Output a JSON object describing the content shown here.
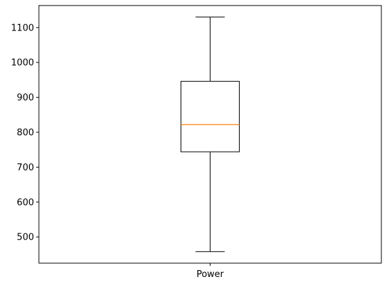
{
  "chart_data": {
    "type": "box",
    "categories": [
      "Power"
    ],
    "boxes": [
      {
        "name": "Power",
        "whisker_low": 458,
        "q1": 744,
        "median": 822,
        "q3": 946,
        "whisker_high": 1130,
        "outliers": []
      }
    ],
    "title": "",
    "xlabel": "",
    "ylabel": "",
    "ylim": [
      425,
      1163
    ],
    "yticks": [
      500,
      600,
      700,
      800,
      900,
      1000,
      1100
    ],
    "grid": false,
    "colors": {
      "box": "#000000",
      "median": "#ff7f0e",
      "background": "#ffffff"
    }
  }
}
